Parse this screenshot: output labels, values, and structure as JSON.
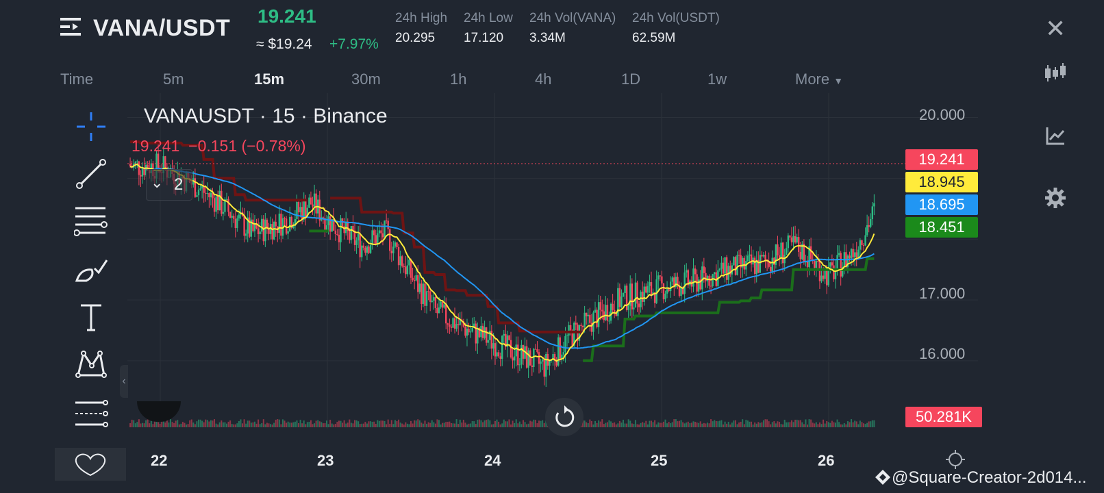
{
  "header": {
    "pair": "VANA/USDT",
    "last_price": "19.241",
    "usd_price": "≈ $19.24",
    "change_pct": "+7.97%",
    "stats": [
      {
        "label": "24h High",
        "value": "20.295"
      },
      {
        "label": "24h Low",
        "value": "17.120"
      },
      {
        "label": "24h Vol(VANA)",
        "value": "3.34M"
      },
      {
        "label": "24h Vol(USDT)",
        "value": "62.59M"
      }
    ]
  },
  "timeframes": {
    "time_label": "Time",
    "items": [
      "5m",
      "15m",
      "30m",
      "1h",
      "4h",
      "1D",
      "1w"
    ],
    "active": "15m",
    "more": "More"
  },
  "legend": {
    "title": "VANAUSDT · 15 · Binance",
    "price": "19.241",
    "change": "−0.151 (−0.78%)",
    "indicator_count": "2"
  },
  "price_tags": [
    {
      "value": "19.241",
      "bg": "#f6465d",
      "fg": "#ffffff"
    },
    {
      "value": "18.945",
      "bg": "#ffeb3b",
      "fg": "#202630"
    },
    {
      "value": "18.695",
      "bg": "#2196f3",
      "fg": "#ffffff"
    },
    {
      "value": "18.451",
      "bg": "#1b8a1b",
      "fg": "#ffffff"
    }
  ],
  "volume_tag": {
    "value": "50.281K",
    "bg": "#f6465d"
  },
  "watermark": "@Square-Creator-2d014...",
  "colors": {
    "up": "#2ebd85",
    "down": "#f6465d",
    "ma_fast": "#ffeb3b",
    "ma_slow": "#2196f3",
    "st_up": "#1b6e1b",
    "st_down": "#6e1414"
  },
  "chart_data": {
    "type": "candlestick",
    "symbol": "VANAUSDT",
    "interval": "15",
    "exchange": "Binance",
    "x_ticks": [
      "22",
      "23",
      "24",
      "25",
      "26"
    ],
    "y_ticks": [
      16.0,
      17.0,
      18.0,
      19.0,
      20.0
    ],
    "ylim": [
      15.2,
      20.4
    ],
    "last_price": 19.241,
    "indicators": [
      {
        "name": "MA fast",
        "last": 18.945,
        "color": "#ffeb3b"
      },
      {
        "name": "MA slow",
        "last": 18.695,
        "color": "#2196f3"
      },
      {
        "name": "SuperTrend",
        "last": 18.451,
        "color": "#1b8a1b"
      }
    ],
    "volume_last": "50.281K",
    "close_path": [
      {
        "x": 0.0,
        "y": 19.2
      },
      {
        "x": 0.2,
        "y": 18.9
      },
      {
        "x": 0.35,
        "y": 18.6
      },
      {
        "x": 0.55,
        "y": 18.1
      },
      {
        "x": 0.75,
        "y": 18.3
      },
      {
        "x": 0.9,
        "y": 18.6
      },
      {
        "x": 1.05,
        "y": 18.2
      },
      {
        "x": 1.2,
        "y": 17.9
      },
      {
        "x": 1.35,
        "y": 18.1
      },
      {
        "x": 1.5,
        "y": 17.4
      },
      {
        "x": 1.65,
        "y": 16.8
      },
      {
        "x": 1.85,
        "y": 16.5
      },
      {
        "x": 2.0,
        "y": 16.3
      },
      {
        "x": 2.15,
        "y": 16.1
      },
      {
        "x": 2.3,
        "y": 15.9
      },
      {
        "x": 2.45,
        "y": 16.4
      },
      {
        "x": 2.6,
        "y": 16.7
      },
      {
        "x": 2.75,
        "y": 17.0
      },
      {
        "x": 3.0,
        "y": 17.2
      },
      {
        "x": 3.2,
        "y": 17.3
      },
      {
        "x": 3.4,
        "y": 17.5
      },
      {
        "x": 3.6,
        "y": 17.6
      },
      {
        "x": 3.8,
        "y": 17.9
      },
      {
        "x": 4.0,
        "y": 17.4
      },
      {
        "x": 4.15,
        "y": 17.8
      },
      {
        "x": 4.3,
        "y": 18.6
      },
      {
        "x": 4.4,
        "y": 19.6
      },
      {
        "x": 4.5,
        "y": 18.9
      },
      {
        "x": 4.6,
        "y": 18.7
      },
      {
        "x": 4.75,
        "y": 18.3
      },
      {
        "x": 4.9,
        "y": 19.0
      },
      {
        "x": 4.97,
        "y": 19.24
      }
    ]
  }
}
